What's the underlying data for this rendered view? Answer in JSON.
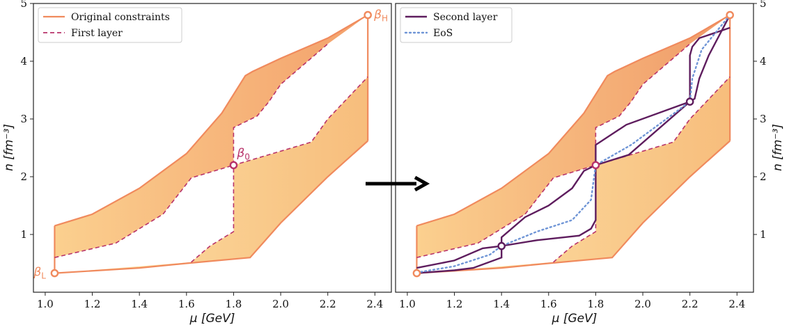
{
  "chart_data": [
    {
      "type": "area",
      "panel": "left",
      "xlabel": "μ [GeV]",
      "ylabel": "n [fm⁻³]",
      "xlim": [
        0.95,
        2.47
      ],
      "ylim": [
        0.0,
        5.0
      ],
      "xticks": [
        "1.0",
        "1.2",
        "1.4",
        "1.6",
        "1.8",
        "2.0",
        "2.2",
        "2.4"
      ],
      "yticks": [
        "1",
        "2",
        "3",
        "4",
        "5"
      ],
      "legend": {
        "position": "top-left",
        "entries": [
          {
            "label": "Original constraints",
            "style": "solid",
            "color": "#f08a5d"
          },
          {
            "label": "First layer",
            "style": "dashed",
            "color": "#b8336a"
          }
        ]
      },
      "series": [
        {
          "name": "Original constraints upper",
          "x": [
            1.04,
            1.2,
            1.4,
            1.6,
            1.75,
            1.85,
            1.88,
            2.0,
            2.2,
            2.37
          ],
          "y": [
            1.15,
            1.35,
            1.8,
            2.4,
            3.1,
            3.75,
            3.82,
            4.05,
            4.4,
            4.8
          ]
        },
        {
          "name": "Original constraints lower",
          "x": [
            1.04,
            1.4,
            1.6,
            1.87,
            2.0,
            2.2,
            2.37
          ],
          "y": [
            0.33,
            0.42,
            0.5,
            0.6,
            1.2,
            2.0,
            2.62
          ]
        },
        {
          "name": "First layer upper",
          "x": [
            1.04,
            1.3,
            1.5,
            1.62,
            1.8,
            1.8,
            1.9,
            1.95,
            2.0,
            2.2
          ],
          "y": [
            0.6,
            0.85,
            1.35,
            1.98,
            2.2,
            2.85,
            3.05,
            3.3,
            3.6,
            4.3
          ]
        },
        {
          "name": "First layer lower",
          "x": [
            1.62,
            1.7,
            1.8,
            1.8,
            2.13,
            2.2,
            2.37
          ],
          "y": [
            0.52,
            0.8,
            1.05,
            2.2,
            2.6,
            3.0,
            3.73
          ]
        }
      ],
      "annotations": [
        {
          "label": "β",
          "sub": "L",
          "x": 1.04,
          "y": 0.33
        },
        {
          "label": "β",
          "sub": "H",
          "x": 2.37,
          "y": 4.8
        },
        {
          "label": "β",
          "sub": "0",
          "x": 1.8,
          "y": 2.2
        }
      ]
    },
    {
      "type": "area",
      "panel": "right",
      "xlabel": "μ [GeV]",
      "ylabel": "n [fm⁻³]",
      "xlim": [
        0.95,
        2.47
      ],
      "ylim": [
        0.0,
        5.0
      ],
      "xticks": [
        "1.0",
        "1.2",
        "1.4",
        "1.6",
        "1.8",
        "2.0",
        "2.2",
        "2.4"
      ],
      "yticks": [
        "1",
        "2",
        "3",
        "4",
        "5"
      ],
      "legend": {
        "position": "top-left",
        "entries": [
          {
            "label": "Second layer",
            "style": "solid",
            "color": "#5e1d5e"
          },
          {
            "label": "EoS",
            "style": "dotted",
            "color": "#6f95d6"
          }
        ]
      },
      "series": [
        {
          "name": "Second layer upper",
          "x": [
            1.04,
            1.2,
            1.32,
            1.4,
            1.4,
            1.5,
            1.6,
            1.7,
            1.75,
            1.8,
            1.8,
            1.93,
            2.2,
            2.2,
            2.21,
            2.24,
            2.37
          ],
          "y": [
            0.42,
            0.55,
            0.76,
            0.8,
            0.95,
            1.3,
            1.5,
            1.8,
            2.1,
            2.2,
            2.55,
            2.9,
            3.3,
            4.1,
            4.25,
            4.4,
            4.58
          ]
        },
        {
          "name": "Second layer lower",
          "x": [
            1.04,
            1.2,
            1.28,
            1.4,
            1.4,
            1.55,
            1.73,
            1.78,
            1.8,
            1.8,
            1.94,
            2.2,
            2.22,
            2.24,
            2.28,
            2.37
          ],
          "y": [
            0.33,
            0.38,
            0.42,
            0.6,
            0.8,
            0.9,
            0.98,
            1.1,
            1.25,
            2.2,
            2.38,
            3.3,
            3.35,
            3.7,
            4.1,
            4.8
          ]
        },
        {
          "name": "EoS",
          "x": [
            1.04,
            1.2,
            1.35,
            1.4,
            1.55,
            1.7,
            1.78,
            1.8,
            1.95,
            2.1,
            2.2,
            2.21,
            2.25,
            2.37
          ],
          "y": [
            0.34,
            0.45,
            0.65,
            0.8,
            1.05,
            1.25,
            1.6,
            2.2,
            2.55,
            3.0,
            3.3,
            3.7,
            4.2,
            4.8
          ]
        }
      ]
    }
  ]
}
